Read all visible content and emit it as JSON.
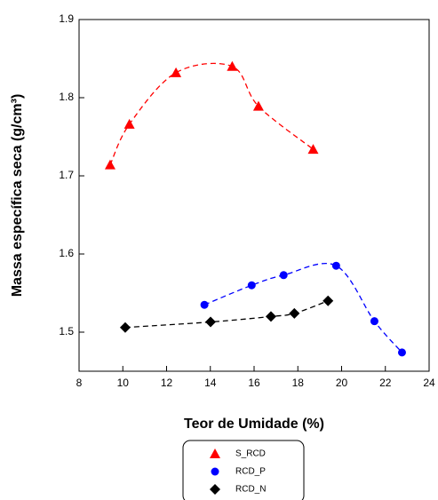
{
  "chart_data": {
    "type": "scatter",
    "xlabel": "Teor de Umidade (%)",
    "ylabel": "Massa específica seca (g/cm³)",
    "xlim": [
      8,
      24
    ],
    "xticks": [
      8,
      10,
      12,
      14,
      16,
      18,
      20,
      22,
      24
    ],
    "ylim": [
      1.45,
      1.9
    ],
    "yticks": [
      1.5,
      1.6,
      1.7,
      1.8,
      1.9
    ],
    "grid": false,
    "series": [
      {
        "name": "S_RCD",
        "color": "#ff0000",
        "marker": "triangle",
        "x": [
          9.42,
          10.3,
          12.43,
          15.0,
          16.2,
          18.7
        ],
        "values": [
          1.714,
          1.766,
          1.832,
          1.84,
          1.789,
          1.734
        ]
      },
      {
        "name": "RCD_P",
        "color": "#0000ff",
        "marker": "circle",
        "x": [
          13.73,
          15.89,
          17.35,
          19.75,
          21.5,
          22.76
        ],
        "values": [
          1.535,
          1.56,
          1.573,
          1.585,
          1.514,
          1.474
        ]
      },
      {
        "name": "RCD_N",
        "color": "#000000",
        "marker": "diamond",
        "x": [
          10.11,
          14.01,
          16.77,
          17.84,
          19.38
        ],
        "values": [
          1.506,
          1.513,
          1.52,
          1.524,
          1.54
        ]
      }
    ]
  }
}
